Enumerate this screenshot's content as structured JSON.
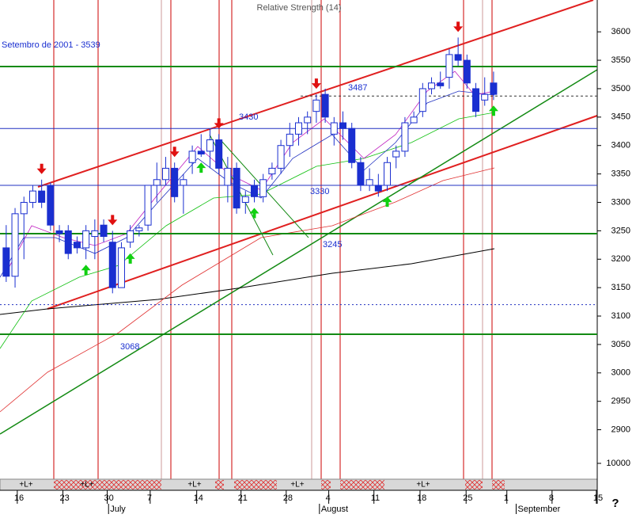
{
  "chart_data": {
    "type": "candlestick",
    "title": "Relative Strength (14)",
    "subtitle": "Setembro de 2001 - 3539",
    "open": [
      3220,
      3170,
      3280,
      3300,
      3320,
      3330,
      3250,
      3250,
      3230,
      3220,
      3240,
      3260,
      3230,
      3150,
      3230,
      3250,
      3260,
      3330,
      3340,
      3360,
      3330,
      3370,
      3390,
      3390,
      3410,
      3330,
      3360,
      3300,
      3330,
      3310,
      3350,
      3360,
      3400,
      3420,
      3440,
      3460,
      3490,
      3420,
      3440,
      3430,
      3370,
      3330,
      3330,
      3330,
      3380,
      3390,
      3440,
      3460,
      3500,
      3510,
      3520,
      3560,
      3550,
      3500,
      3480,
      3510
    ],
    "high": [
      3260,
      3290,
      3310,
      3330,
      3340,
      3335,
      3260,
      3260,
      3240,
      3260,
      3270,
      3270,
      3250,
      3230,
      3260,
      3260,
      3330,
      3370,
      3380,
      3370,
      3350,
      3400,
      3420,
      3430,
      3420,
      3380,
      3370,
      3320,
      3340,
      3350,
      3370,
      3410,
      3440,
      3450,
      3460,
      3490,
      3500,
      3450,
      3460,
      3440,
      3380,
      3360,
      3350,
      3380,
      3400,
      3450,
      3460,
      3510,
      3520,
      3530,
      3570,
      3590,
      3560,
      3510,
      3520,
      3530
    ],
    "low": [
      3160,
      3150,
      3200,
      3290,
      3290,
      3250,
      3230,
      3200,
      3210,
      3200,
      3200,
      3230,
      3140,
      3150,
      3220,
      3240,
      3250,
      3300,
      3330,
      3300,
      3280,
      3350,
      3380,
      3360,
      3350,
      3300,
      3280,
      3280,
      3300,
      3300,
      3340,
      3350,
      3380,
      3400,
      3420,
      3440,
      3440,
      3400,
      3410,
      3360,
      3320,
      3320,
      3310,
      3320,
      3360,
      3380,
      3440,
      3450,
      3490,
      3500,
      3500,
      3540,
      3500,
      3450,
      3470,
      3480
    ],
    "close": [
      3170,
      3280,
      3300,
      3320,
      3300,
      3260,
      3245,
      3210,
      3220,
      3250,
      3250,
      3240,
      3150,
      3220,
      3250,
      3255,
      3330,
      3340,
      3360,
      3310,
      3340,
      3390,
      3385,
      3410,
      3360,
      3360,
      3290,
      3310,
      3310,
      3340,
      3360,
      3400,
      3420,
      3440,
      3450,
      3480,
      3450,
      3440,
      3430,
      3370,
      3330,
      3340,
      3320,
      3370,
      3390,
      3440,
      3450,
      3500,
      3510,
      3505,
      3560,
      3550,
      3510,
      3460,
      3490,
      3490
    ],
    "sell_signals": [
      4,
      12,
      19,
      24,
      35,
      51
    ],
    "buy_signals": [
      9,
      14,
      22,
      28,
      43,
      55
    ],
    "levels": [
      3487,
      3430,
      3330,
      3245,
      3068
    ],
    "lines": [
      3539,
      3120
    ],
    "xlim": [
      -0.7,
      66.7
    ],
    "ylim": [
      2813,
      3656
    ],
    "yticks": [
      3600,
      3550,
      3500,
      3450,
      3400,
      3350,
      3300,
      3250,
      3200,
      3150,
      3100,
      3050,
      3000,
      2950,
      2900
    ],
    "xticks": [
      {
        "value": 1.25,
        "label": "16"
      },
      {
        "value": 6.4,
        "label": "23"
      },
      {
        "value": 11.4,
        "label": "30"
      },
      {
        "value": 16.25,
        "label": "7"
      },
      {
        "value": 21.5,
        "label": "14"
      },
      {
        "value": 26.5,
        "label": "21"
      },
      {
        "value": 31.6,
        "label": "28"
      },
      {
        "value": 36.4,
        "label": "4"
      },
      {
        "value": 41.5,
        "label": "11"
      },
      {
        "value": 46.7,
        "label": "18"
      },
      {
        "value": 51.9,
        "label": "25"
      },
      {
        "value": 56.5,
        "label": "1"
      },
      {
        "value": 61.6,
        "label": "8"
      },
      {
        "value": 66.6,
        "label": "15"
      }
    ],
    "months": [
      {
        "value": 12.8,
        "label": "July"
      },
      {
        "value": 36.6,
        "label": "August"
      },
      {
        "value": 58.8,
        "label": "September"
      }
    ],
    "volume_ticks": [
      10000
    ],
    "strip_labels": [
      "+L+",
      "+L+",
      "+L+",
      "+L+",
      "+L+"
    ],
    "help": "?",
    "up_color": "#ffffff",
    "down_color": "#1a2fd0",
    "grid": true
  }
}
